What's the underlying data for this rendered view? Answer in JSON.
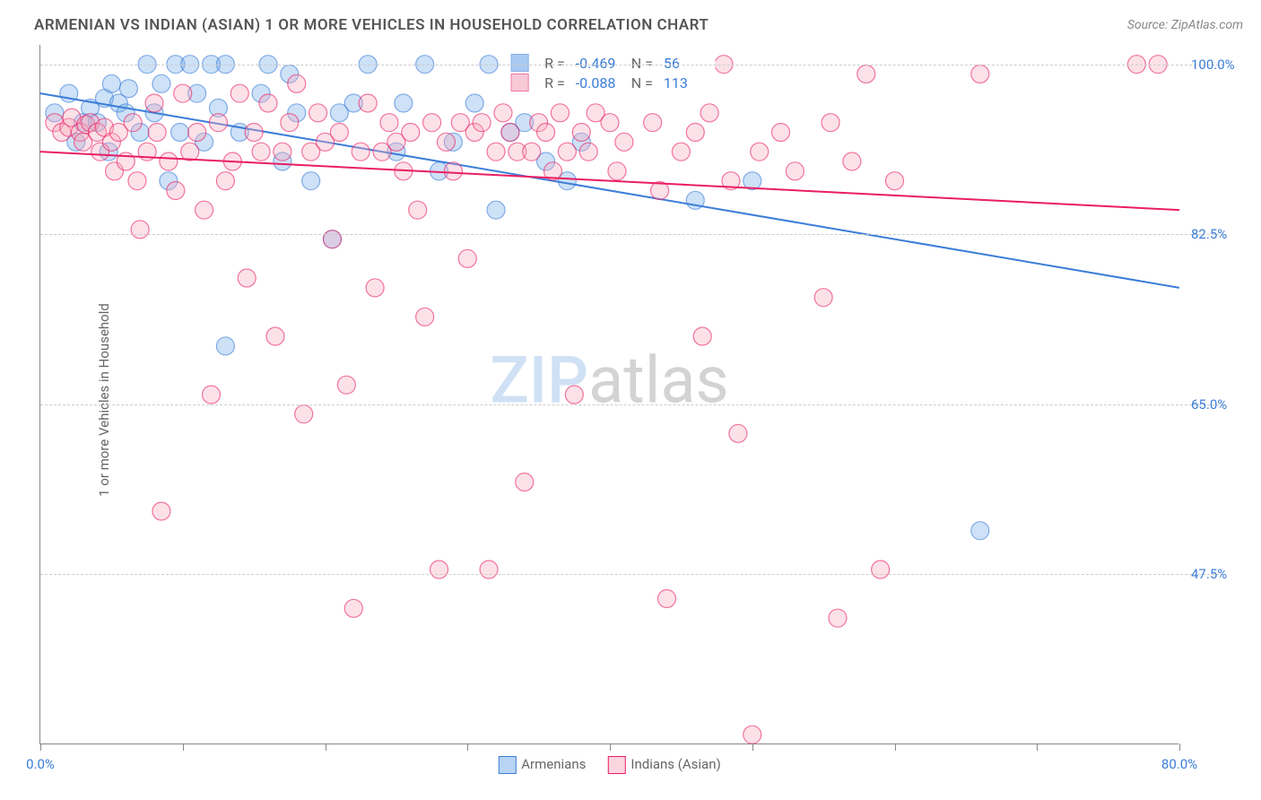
{
  "meta": {
    "title": "ARMENIAN VS INDIAN (ASIAN) 1 OR MORE VEHICLES IN HOUSEHOLD CORRELATION CHART",
    "source": "Source: ZipAtlas.com",
    "ylabel": "1 or more Vehicles in Household",
    "watermark_left": "ZIP",
    "watermark_right": "atlas"
  },
  "chart": {
    "type": "scatter",
    "xlim": [
      0,
      80
    ],
    "ylim": [
      30,
      102
    ],
    "xticks": [
      0,
      10,
      20,
      30,
      40,
      50,
      60,
      70,
      80
    ],
    "xtick_labels": {
      "0": "0.0%",
      "80": "80.0%"
    },
    "yticks": [
      47.5,
      65.0,
      82.5,
      100.0
    ],
    "ytick_labels": [
      "47.5%",
      "65.0%",
      "82.5%",
      "100.0%"
    ],
    "background_color": "#ffffff",
    "grid_color": "#cccccc",
    "axis_color": "#888888",
    "marker_radius": 10,
    "marker_fill_opacity": 0.35,
    "marker_stroke_width": 1.2,
    "line_width": 2,
    "series": [
      {
        "name": "Armenians",
        "color_fill": "#6fa8e8",
        "color_stroke": "#3b7dd8",
        "R": "-0.469",
        "N": "56",
        "trend_y_at_xmin": 97.0,
        "trend_y_at_xmax": 77.0,
        "points": [
          [
            1,
            95
          ],
          [
            2,
            97
          ],
          [
            2.5,
            92
          ],
          [
            3,
            94
          ],
          [
            3.5,
            95.5
          ],
          [
            4,
            94
          ],
          [
            4.5,
            96.5
          ],
          [
            4.8,
            91
          ],
          [
            5,
            98
          ],
          [
            5.5,
            96
          ],
          [
            6,
            95
          ],
          [
            6.2,
            97.5
          ],
          [
            7,
            93
          ],
          [
            7.5,
            100
          ],
          [
            8,
            95
          ],
          [
            8.5,
            98
          ],
          [
            9,
            88
          ],
          [
            9.5,
            100
          ],
          [
            9.8,
            93
          ],
          [
            10.5,
            100
          ],
          [
            11,
            97
          ],
          [
            11.5,
            92
          ],
          [
            12,
            100
          ],
          [
            12.5,
            95.5
          ],
          [
            13,
            100
          ],
          [
            14,
            93
          ],
          [
            13,
            71
          ],
          [
            15.5,
            97
          ],
          [
            16,
            100
          ],
          [
            17,
            90
          ],
          [
            17.5,
            99
          ],
          [
            18,
            95
          ],
          [
            19,
            88
          ],
          [
            20.5,
            82
          ],
          [
            21,
            95
          ],
          [
            22,
            96
          ],
          [
            23,
            100
          ],
          [
            25,
            91
          ],
          [
            25.5,
            96
          ],
          [
            27,
            100
          ],
          [
            28,
            89
          ],
          [
            29,
            92
          ],
          [
            30.5,
            96
          ],
          [
            31.5,
            100
          ],
          [
            32,
            85
          ],
          [
            33,
            93
          ],
          [
            33.5,
            99
          ],
          [
            34,
            94
          ],
          [
            35.5,
            90
          ],
          [
            37,
            88
          ],
          [
            38,
            92
          ],
          [
            45,
            98
          ],
          [
            46,
            86
          ],
          [
            50,
            88
          ],
          [
            66,
            52
          ]
        ]
      },
      {
        "name": "Indians (Asian)",
        "color_fill": "#f5a8bd",
        "color_stroke": "#e91e63",
        "R": "-0.088",
        "N": "113",
        "trend_y_at_xmin": 91.0,
        "trend_y_at_xmax": 85.0,
        "points": [
          [
            1,
            94
          ],
          [
            1.5,
            93
          ],
          [
            2,
            93.5
          ],
          [
            2.2,
            94.5
          ],
          [
            2.8,
            93
          ],
          [
            3,
            92
          ],
          [
            3.2,
            93.8
          ],
          [
            3.5,
            94
          ],
          [
            4,
            93
          ],
          [
            4.2,
            91
          ],
          [
            4.5,
            93.5
          ],
          [
            5,
            92
          ],
          [
            5.2,
            89
          ],
          [
            5.5,
            93
          ],
          [
            6,
            90
          ],
          [
            6.5,
            94
          ],
          [
            6.8,
            88
          ],
          [
            7,
            83
          ],
          [
            7.5,
            91
          ],
          [
            8,
            96
          ],
          [
            8.5,
            54
          ],
          [
            8.2,
            93
          ],
          [
            9,
            90
          ],
          [
            9.5,
            87
          ],
          [
            10,
            97
          ],
          [
            10.5,
            91
          ],
          [
            11,
            93
          ],
          [
            11.5,
            85
          ],
          [
            12,
            66
          ],
          [
            12.5,
            94
          ],
          [
            13,
            88
          ],
          [
            13.5,
            90
          ],
          [
            14,
            97
          ],
          [
            14.5,
            78
          ],
          [
            15,
            93
          ],
          [
            15.5,
            91
          ],
          [
            16,
            96
          ],
          [
            16.5,
            72
          ],
          [
            17,
            91
          ],
          [
            17.5,
            94
          ],
          [
            18,
            98
          ],
          [
            18.5,
            64
          ],
          [
            19,
            91
          ],
          [
            19.5,
            95
          ],
          [
            20,
            92
          ],
          [
            20.5,
            82
          ],
          [
            21,
            93
          ],
          [
            21.5,
            67
          ],
          [
            22,
            44
          ],
          [
            22.5,
            91
          ],
          [
            23,
            96
          ],
          [
            23.5,
            77
          ],
          [
            24,
            91
          ],
          [
            24.5,
            94
          ],
          [
            25,
            92
          ],
          [
            25.5,
            89
          ],
          [
            26,
            93
          ],
          [
            26.5,
            85
          ],
          [
            27,
            74
          ],
          [
            27.5,
            94
          ],
          [
            28,
            48
          ],
          [
            28.5,
            92
          ],
          [
            29,
            89
          ],
          [
            29.5,
            94
          ],
          [
            30,
            80
          ],
          [
            30.5,
            93
          ],
          [
            31,
            94
          ],
          [
            31.5,
            48
          ],
          [
            32,
            91
          ],
          [
            32.5,
            95
          ],
          [
            33,
            93
          ],
          [
            33.5,
            91
          ],
          [
            34,
            57
          ],
          [
            34.5,
            91
          ],
          [
            35,
            94
          ],
          [
            35.5,
            93
          ],
          [
            36,
            89
          ],
          [
            36.5,
            95
          ],
          [
            37,
            91
          ],
          [
            37.5,
            66
          ],
          [
            38,
            93
          ],
          [
            38.5,
            91
          ],
          [
            39,
            95
          ],
          [
            40,
            94
          ],
          [
            40.5,
            89
          ],
          [
            41,
            92
          ],
          [
            43,
            94
          ],
          [
            43.5,
            87
          ],
          [
            44,
            45
          ],
          [
            45,
            91
          ],
          [
            46,
            93
          ],
          [
            46.5,
            72
          ],
          [
            47,
            95
          ],
          [
            48,
            100
          ],
          [
            48.5,
            88
          ],
          [
            49,
            62
          ],
          [
            50,
            31
          ],
          [
            50.5,
            91
          ],
          [
            52,
            93
          ],
          [
            53,
            89
          ],
          [
            55,
            76
          ],
          [
            55.5,
            94
          ],
          [
            56,
            43
          ],
          [
            57,
            90
          ],
          [
            58,
            99
          ],
          [
            59,
            48
          ],
          [
            66,
            99
          ],
          [
            60,
            88
          ],
          [
            77,
            100
          ],
          [
            78.5,
            100
          ]
        ]
      }
    ]
  },
  "bottom_legend": [
    {
      "label": "Armenians",
      "fill": "#b8d4f5",
      "stroke": "#3b7dd8"
    },
    {
      "label": "Indians (Asian)",
      "fill": "#fbd5e0",
      "stroke": "#e91e63"
    }
  ]
}
